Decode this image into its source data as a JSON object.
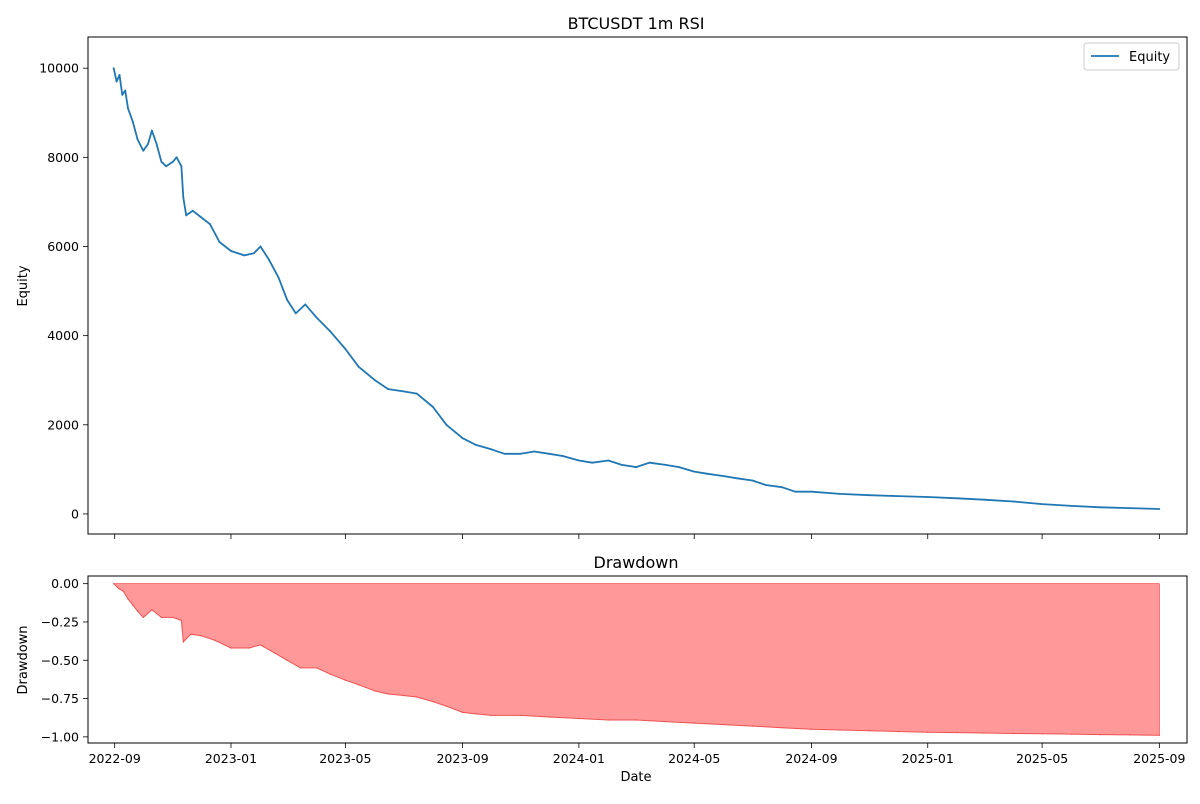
{
  "chart_data": [
    {
      "type": "line",
      "title": "BTCUSDT 1m RSI",
      "xlabel": "",
      "ylabel": "Equity",
      "xlim": [
        "2022-08-04",
        "2025-09-30"
      ],
      "ylim": [
        -450,
        10700
      ],
      "x_ticks": [
        "2022-09",
        "2023-01",
        "2023-05",
        "2023-09",
        "2024-01",
        "2024-05",
        "2024-09",
        "2025-01",
        "2025-05",
        "2025-09"
      ],
      "y_ticks": [
        0,
        2000,
        4000,
        6000,
        8000,
        10000
      ],
      "grid": false,
      "legend_position": "top-right",
      "colors": {
        "equity": "#1f77b4"
      },
      "series": [
        {
          "name": "Equity",
          "x": [
            "2022-08-31",
            "2022-09-03",
            "2022-09-06",
            "2022-09-09",
            "2022-09-12",
            "2022-09-15",
            "2022-09-20",
            "2022-09-25",
            "2022-10-01",
            "2022-10-06",
            "2022-10-10",
            "2022-10-15",
            "2022-10-20",
            "2022-10-25",
            "2022-11-01",
            "2022-11-05",
            "2022-11-10",
            "2022-11-12",
            "2022-11-15",
            "2022-11-22",
            "2022-12-01",
            "2022-12-10",
            "2022-12-20",
            "2023-01-01",
            "2023-01-15",
            "2023-01-25",
            "2023-02-01",
            "2023-02-10",
            "2023-02-20",
            "2023-03-01",
            "2023-03-10",
            "2023-03-20",
            "2023-04-01",
            "2023-04-15",
            "2023-05-01",
            "2023-05-15",
            "2023-06-01",
            "2023-06-15",
            "2023-07-01",
            "2023-07-15",
            "2023-08-01",
            "2023-08-15",
            "2023-09-01",
            "2023-09-15",
            "2023-10-01",
            "2023-10-15",
            "2023-11-01",
            "2023-11-15",
            "2023-12-01",
            "2023-12-15",
            "2024-01-01",
            "2024-01-15",
            "2024-02-01",
            "2024-02-15",
            "2024-03-01",
            "2024-03-15",
            "2024-04-01",
            "2024-04-15",
            "2024-05-01",
            "2024-05-15",
            "2024-06-01",
            "2024-06-15",
            "2024-07-01",
            "2024-07-15",
            "2024-08-01",
            "2024-08-15",
            "2024-09-01",
            "2024-10-01",
            "2024-11-01",
            "2024-12-01",
            "2025-01-01",
            "2025-02-01",
            "2025-03-01",
            "2025-04-01",
            "2025-05-01",
            "2025-06-01",
            "2025-07-01",
            "2025-08-01",
            "2025-09-01"
          ],
          "values": [
            10000,
            9700,
            9850,
            9400,
            9500,
            9100,
            8800,
            8400,
            8150,
            8300,
            8600,
            8300,
            7900,
            7800,
            7900,
            8000,
            7800,
            7100,
            6700,
            6800,
            6650,
            6500,
            6100,
            5900,
            5800,
            5850,
            6000,
            5700,
            5300,
            4800,
            4500,
            4700,
            4400,
            4100,
            3700,
            3300,
            3000,
            2800,
            2750,
            2700,
            2400,
            2000,
            1700,
            1550,
            1450,
            1350,
            1350,
            1400,
            1350,
            1300,
            1200,
            1150,
            1200,
            1100,
            1050,
            1150,
            1100,
            1050,
            950,
            900,
            850,
            800,
            750,
            650,
            600,
            500,
            500,
            450,
            420,
            400,
            380,
            350,
            320,
            280,
            220,
            180,
            150,
            130,
            110
          ]
        }
      ]
    },
    {
      "type": "area",
      "title": "Drawdown",
      "xlabel": "Date",
      "ylabel": "Drawdown",
      "xlim": [
        "2022-08-04",
        "2025-09-30"
      ],
      "ylim": [
        -1.04,
        0.05
      ],
      "x_ticks": [
        "2022-09",
        "2023-01",
        "2023-05",
        "2023-09",
        "2024-01",
        "2024-05",
        "2024-09",
        "2025-01",
        "2025-05",
        "2025-09"
      ],
      "y_ticks": [
        0.0,
        -0.25,
        -0.5,
        -0.75,
        -1.0
      ],
      "y_tick_labels": [
        "0.00",
        "−0.25",
        "−0.50",
        "−0.75",
        "−1.00"
      ],
      "grid": false,
      "colors": {
        "fill": "#ff9999",
        "line": "#f05050"
      },
      "series": [
        {
          "x": [
            "2022-08-31",
            "2022-09-05",
            "2022-09-10",
            "2022-09-15",
            "2022-09-20",
            "2022-09-25",
            "2022-10-01",
            "2022-10-10",
            "2022-10-20",
            "2022-11-01",
            "2022-11-10",
            "2022-11-12",
            "2022-11-20",
            "2022-12-01",
            "2022-12-15",
            "2023-01-01",
            "2023-01-20",
            "2023-02-01",
            "2023-02-15",
            "2023-03-01",
            "2023-03-15",
            "2023-04-01",
            "2023-04-15",
            "2023-05-01",
            "2023-05-15",
            "2023-06-01",
            "2023-06-15",
            "2023-07-01",
            "2023-07-15",
            "2023-08-01",
            "2023-08-15",
            "2023-09-01",
            "2023-09-15",
            "2023-10-01",
            "2023-11-01",
            "2023-12-01",
            "2024-01-01",
            "2024-02-01",
            "2024-03-01",
            "2024-04-01",
            "2024-05-01",
            "2024-06-01",
            "2024-07-01",
            "2024-08-01",
            "2024-09-01",
            "2024-10-01",
            "2024-11-01",
            "2024-12-01",
            "2025-01-01",
            "2025-02-01",
            "2025-03-01",
            "2025-04-01",
            "2025-05-01",
            "2025-06-01",
            "2025-07-01",
            "2025-08-01",
            "2025-09-01"
          ],
          "values": [
            0.0,
            -0.03,
            -0.05,
            -0.1,
            -0.14,
            -0.18,
            -0.22,
            -0.17,
            -0.22,
            -0.22,
            -0.24,
            -0.38,
            -0.33,
            -0.34,
            -0.37,
            -0.42,
            -0.42,
            -0.4,
            -0.45,
            -0.5,
            -0.55,
            -0.55,
            -0.59,
            -0.63,
            -0.66,
            -0.7,
            -0.72,
            -0.73,
            -0.74,
            -0.77,
            -0.8,
            -0.84,
            -0.85,
            -0.86,
            -0.86,
            -0.87,
            -0.88,
            -0.89,
            -0.89,
            -0.9,
            -0.91,
            -0.92,
            -0.93,
            -0.94,
            -0.95,
            -0.955,
            -0.96,
            -0.965,
            -0.97,
            -0.972,
            -0.975,
            -0.978,
            -0.98,
            -0.982,
            -0.985,
            -0.987,
            -0.99
          ]
        }
      ]
    }
  ]
}
